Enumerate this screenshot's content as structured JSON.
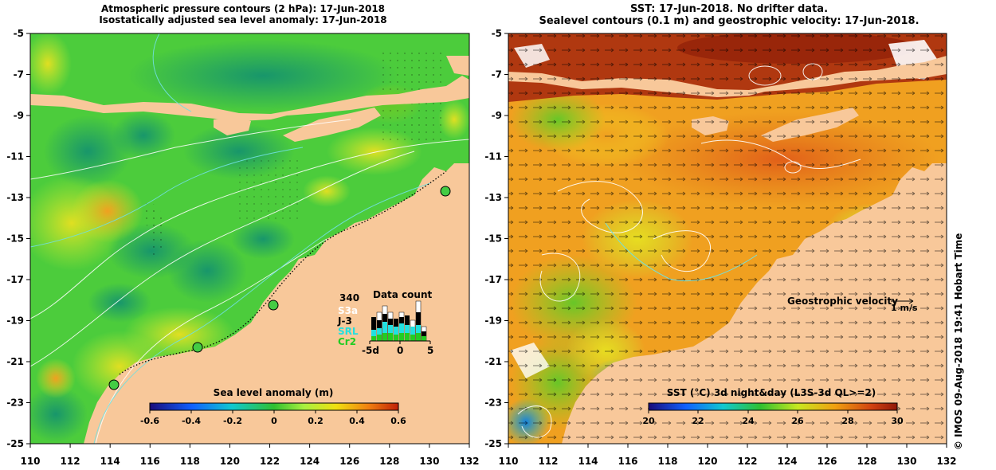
{
  "left_panel": {
    "title_line1": "Atmospheric pressure contours (2 hPa): 17-Jun-2018",
    "title_line2": "Isostatically adjusted sea level anomaly: 17-Jun-2018",
    "colorbar_title": "Sea level anomaly (m)",
    "colorbar_ticks": [
      "-0.6",
      "-0.4",
      "-0.2",
      "0",
      "0.2",
      "0.4",
      "0.6"
    ],
    "data_count": {
      "title": "Data count",
      "max_value": "340",
      "satellites": [
        {
          "name": "S3a",
          "color": "#ffffff"
        },
        {
          "name": "J-3",
          "color": "#000000"
        },
        {
          "name": "SRL",
          "color": "#22e0e0"
        },
        {
          "name": "Cr2",
          "color": "#22cc22"
        }
      ],
      "axis_ticks": [
        "-5d",
        "0",
        "5"
      ]
    }
  },
  "right_panel": {
    "title_line1": "SST: 17-Jun-2018. No drifter data.",
    "title_line2": "Sealevel contours (0.1 m) and geostrophic velocity: 17-Jun-2018.",
    "colorbar_title": "SST (°C) 3d night&day (L3S-3d QL>=2)",
    "colorbar_ticks": [
      "20",
      "22",
      "24",
      "26",
      "28",
      "30"
    ],
    "velocity_legend_label": "Geostrophic velocity",
    "velocity_scale": "1 m/s"
  },
  "axes": {
    "x_ticks": [
      "110",
      "112",
      "114",
      "116",
      "118",
      "120",
      "122",
      "124",
      "126",
      "128",
      "130",
      "132"
    ],
    "y_ticks": [
      "-5",
      "-7",
      "-9",
      "-11",
      "-13",
      "-15",
      "-17",
      "-19",
      "-21",
      "-23",
      "-25"
    ]
  },
  "credit": "© IMOS 09-Aug-2018 19:41 Hobart Time",
  "colors": {
    "land": "#f8c89a",
    "ocean_left": "#4ccc3c",
    "ocean_right": "#f0a020",
    "north_warm": "#b03810"
  }
}
